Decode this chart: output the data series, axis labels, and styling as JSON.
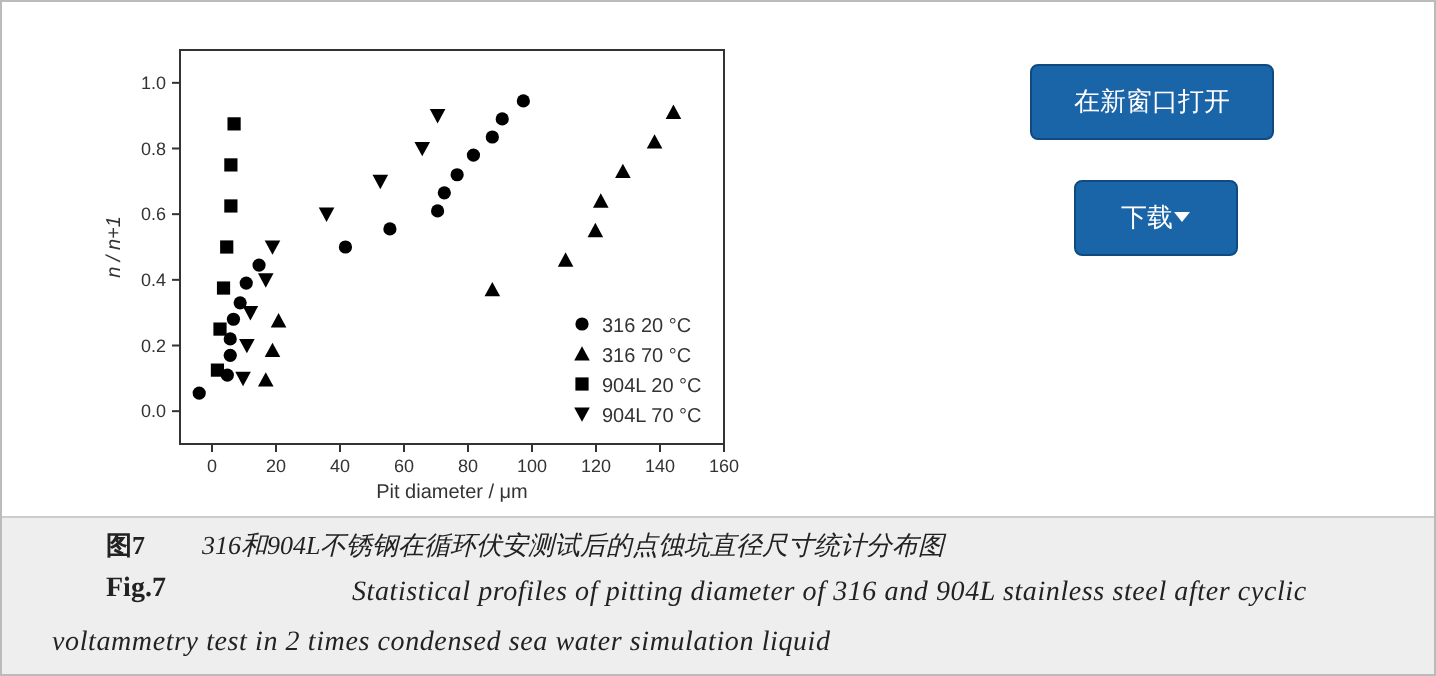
{
  "chart_data": {
    "type": "scatter",
    "xlabel": "Pit diameter / μm",
    "ylabel": "n / n+1",
    "xlim": [
      -10,
      160
    ],
    "ylim": [
      -0.1,
      1.1
    ],
    "xticks": [
      0,
      20,
      40,
      60,
      80,
      100,
      120,
      140,
      160
    ],
    "yticks": [
      {
        "value": 0,
        "label": "0.0"
      },
      0.2,
      0.4,
      0.6,
      0.8,
      {
        "value": 1,
        "label": "1.0"
      }
    ],
    "grid": false,
    "legend": "bottom right",
    "series": [
      {
        "name": "316   20 °C",
        "color": "#000000",
        "marker": "circle",
        "x": [
          -4,
          4.8,
          5.7,
          5.7,
          6.7,
          8.8,
          10.7,
          14.7,
          41.7,
          55.6,
          70.5,
          72.6,
          76.6,
          81.7,
          87.6,
          90.7,
          97.3
        ],
        "values": [
          0.055,
          0.11,
          0.17,
          0.22,
          0.28,
          0.33,
          0.39,
          0.445,
          0.5,
          0.555,
          0.61,
          0.665,
          0.72,
          0.78,
          0.835,
          0.89,
          0.945
        ]
      },
      {
        "name": "316   70 °C",
        "color": "#000000",
        "marker": "triangle",
        "x": [
          16.8,
          18.9,
          20.8,
          87.6,
          110.5,
          119.8,
          121.5,
          128.4,
          138.3,
          144.2
        ],
        "values": [
          0.095,
          0.185,
          0.275,
          0.37,
          0.46,
          0.55,
          0.64,
          0.73,
          0.82,
          0.91
        ]
      },
      {
        "name": "904L 20 °C",
        "color": "#000000",
        "marker": "square",
        "x": [
          1.7,
          2.5,
          3.6,
          4.6,
          5.9,
          5.9,
          6.9
        ],
        "values": [
          0.125,
          0.25,
          0.375,
          0.5,
          0.625,
          0.75,
          0.875
        ]
      },
      {
        "name": "904L 70 °C",
        "color": "#000000",
        "marker": "triangle-down",
        "x": [
          9.7,
          10.9,
          12,
          16.8,
          18.9,
          35.8,
          52.6,
          65.7,
          70.5
        ],
        "values": [
          0.1,
          0.2,
          0.3,
          0.4,
          0.5,
          0.6,
          0.7,
          0.8,
          0.9
        ]
      }
    ],
    "annotations": [
      "在新窗口打开",
      "下载",
      "图7",
      "316和904L不锈钢在循环伏安测试后的点蚀坑直径尺寸统计分布图",
      "Fig.7",
      "Statistical profiles of pitting diameter of 316 and 904L stainless steel after cyclic voltammetry test in 2 times condensed sea water simulation liquid"
    ]
  }
}
